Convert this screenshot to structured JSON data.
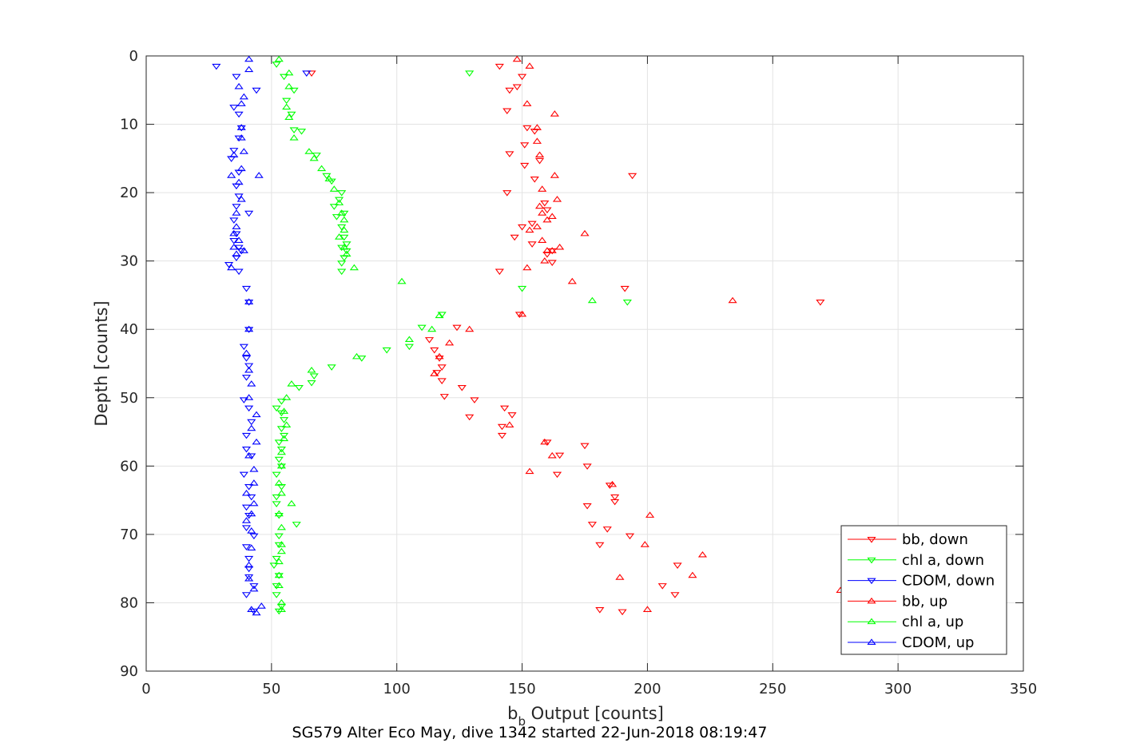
{
  "chart_data": {
    "type": "scatter",
    "xlabel": {
      "main": "b",
      "sub": "b",
      "rest": " Output [counts]"
    },
    "ylabel": "Depth [counts]",
    "caption": "SG579 Alter Eco May, dive 1342 started 22-Jun-2018 08:19:47",
    "xlim": [
      0,
      350
    ],
    "ylim": [
      0,
      90
    ],
    "y_reversed": true,
    "grid": true,
    "x_ticks": [
      "0",
      "50",
      "100",
      "150",
      "200",
      "250",
      "300",
      "350"
    ],
    "y_ticks": [
      "0",
      "10",
      "20",
      "30",
      "40",
      "50",
      "60",
      "70",
      "80",
      "90"
    ],
    "legend_position": "bottom-right",
    "series": [
      {
        "name": "bb, down",
        "color": "#ff0000",
        "marker": "triangle-down",
        "points": [
          [
            66,
            2.5
          ],
          [
            141,
            1.5
          ],
          [
            150,
            3
          ],
          [
            148,
            4.5
          ],
          [
            145,
            5
          ],
          [
            144,
            8
          ],
          [
            152,
            10.5
          ],
          [
            155,
            11
          ],
          [
            151,
            13
          ],
          [
            145,
            14.3
          ],
          [
            157,
            15.3
          ],
          [
            151,
            16
          ],
          [
            155,
            18
          ],
          [
            144,
            20
          ],
          [
            159,
            21.5
          ],
          [
            160,
            22.5
          ],
          [
            154,
            24.5
          ],
          [
            150,
            25
          ],
          [
            147,
            26.5
          ],
          [
            154,
            27.5
          ],
          [
            162,
            28.5
          ],
          [
            160,
            29
          ],
          [
            162,
            30.2
          ],
          [
            141,
            31.5
          ],
          [
            191,
            34
          ],
          [
            269,
            36
          ],
          [
            194,
            17.5
          ],
          [
            149,
            37.8
          ],
          [
            124,
            39.7
          ],
          [
            113,
            41.5
          ],
          [
            115,
            43
          ],
          [
            117,
            44.2
          ],
          [
            118,
            45.5
          ],
          [
            116,
            46.3
          ],
          [
            118,
            47.5
          ],
          [
            126,
            48.5
          ],
          [
            119,
            49.8
          ],
          [
            131,
            50.3
          ],
          [
            143,
            51.5
          ],
          [
            146,
            52.5
          ],
          [
            129,
            52.8
          ],
          [
            142,
            54.2
          ],
          [
            142,
            55.5
          ],
          [
            160,
            56.5
          ],
          [
            165,
            58.4
          ],
          [
            175,
            57
          ],
          [
            176,
            60
          ],
          [
            164,
            61.2
          ],
          [
            185,
            62.8
          ],
          [
            187,
            64.5
          ],
          [
            187,
            65.2
          ],
          [
            176,
            65.8
          ],
          [
            184,
            69.2
          ],
          [
            178,
            68.5
          ],
          [
            193,
            70.2
          ],
          [
            181,
            71.5
          ],
          [
            212,
            74.5
          ],
          [
            206,
            77.5
          ],
          [
            211,
            78.8
          ],
          [
            181,
            81
          ],
          [
            190,
            81.3
          ]
        ]
      },
      {
        "name": "chl a, down",
        "color": "#00ff00",
        "marker": "triangle-down",
        "points": [
          [
            52,
            1.2
          ],
          [
            55,
            3
          ],
          [
            59,
            5
          ],
          [
            56,
            6.5
          ],
          [
            58,
            8.5
          ],
          [
            62,
            11
          ],
          [
            59,
            10.8
          ],
          [
            68,
            14.5
          ],
          [
            72,
            17.5
          ],
          [
            74,
            18.3
          ],
          [
            78,
            20
          ],
          [
            77,
            21
          ],
          [
            75,
            22
          ],
          [
            79,
            23
          ],
          [
            76,
            23.5
          ],
          [
            78,
            25
          ],
          [
            79,
            26.5
          ],
          [
            80,
            27.5
          ],
          [
            78,
            28
          ],
          [
            80,
            28.5
          ],
          [
            79,
            29.5
          ],
          [
            78,
            30.3
          ],
          [
            78,
            31.5
          ],
          [
            129,
            2.5
          ],
          [
            150,
            34
          ],
          [
            192,
            36
          ],
          [
            118,
            37.8
          ],
          [
            110,
            39.7
          ],
          [
            105,
            42.5
          ],
          [
            96,
            43
          ],
          [
            86,
            44.2
          ],
          [
            74,
            45.5
          ],
          [
            67,
            46.8
          ],
          [
            66,
            47.8
          ],
          [
            61,
            48.5
          ],
          [
            54,
            50.5
          ],
          [
            52,
            51.5
          ],
          [
            54,
            52.2
          ],
          [
            55,
            53.2
          ],
          [
            54,
            54.5
          ],
          [
            55,
            55.5
          ],
          [
            53,
            56.5
          ],
          [
            54,
            57.5
          ],
          [
            53,
            59
          ],
          [
            54,
            60
          ],
          [
            52,
            61.2
          ],
          [
            54,
            63
          ],
          [
            52,
            64.5
          ],
          [
            52,
            65.5
          ],
          [
            53,
            67.2
          ],
          [
            60,
            68.5
          ],
          [
            53,
            70.2
          ],
          [
            53,
            71.5
          ],
          [
            52,
            73.5
          ],
          [
            51,
            74.5
          ],
          [
            53,
            76
          ],
          [
            52,
            77.5
          ],
          [
            52,
            78.8
          ],
          [
            54,
            80.5
          ],
          [
            53,
            81.2
          ]
        ]
      },
      {
        "name": "CDOM, down",
        "color": "#0000ff",
        "marker": "triangle-down",
        "points": [
          [
            28,
            1.5
          ],
          [
            64,
            2.5
          ],
          [
            36,
            3
          ],
          [
            44,
            5
          ],
          [
            35,
            7.5
          ],
          [
            37,
            8.5
          ],
          [
            38,
            10.5
          ],
          [
            37,
            12
          ],
          [
            35,
            13.8
          ],
          [
            34,
            15
          ],
          [
            37,
            17
          ],
          [
            36,
            19
          ],
          [
            37,
            20.5
          ],
          [
            36,
            22
          ],
          [
            41,
            23
          ],
          [
            35,
            24
          ],
          [
            36,
            26
          ],
          [
            35,
            27
          ],
          [
            37,
            28
          ],
          [
            38,
            28.5
          ],
          [
            36,
            29.5
          ],
          [
            33,
            30.5
          ],
          [
            37,
            31.5
          ],
          [
            40,
            34
          ],
          [
            41,
            36
          ],
          [
            41,
            40
          ],
          [
            39,
            42.5
          ],
          [
            40,
            44.2
          ],
          [
            41,
            45.3
          ],
          [
            40,
            47
          ],
          [
            39,
            50.3
          ],
          [
            41,
            51.5
          ],
          [
            42,
            53.5
          ],
          [
            40,
            55.5
          ],
          [
            40,
            57.5
          ],
          [
            42,
            58.5
          ],
          [
            39,
            61.2
          ],
          [
            41,
            63
          ],
          [
            42,
            64.5
          ],
          [
            40,
            66
          ],
          [
            41,
            67.2
          ],
          [
            40,
            69
          ],
          [
            43,
            70.2
          ],
          [
            40,
            71.8
          ],
          [
            41,
            73.5
          ],
          [
            41,
            75
          ],
          [
            41,
            76.2
          ],
          [
            43,
            77.5
          ],
          [
            40,
            78.8
          ],
          [
            43,
            81.2
          ]
        ]
      },
      {
        "name": "bb, up",
        "color": "#ff0000",
        "marker": "triangle-up",
        "points": [
          [
            148,
            0.5
          ],
          [
            153,
            1.5
          ],
          [
            152,
            7
          ],
          [
            163,
            8.5
          ],
          [
            156,
            10.5
          ],
          [
            156,
            12.5
          ],
          [
            157,
            14.5
          ],
          [
            163,
            17.5
          ],
          [
            158,
            19.5
          ],
          [
            164,
            21
          ],
          [
            157,
            22
          ],
          [
            158,
            23
          ],
          [
            162,
            23.5
          ],
          [
            160,
            24
          ],
          [
            156,
            25
          ],
          [
            153,
            25.5
          ],
          [
            175,
            26
          ],
          [
            158,
            27
          ],
          [
            165,
            28
          ],
          [
            162,
            28.5
          ],
          [
            160,
            28.5
          ],
          [
            159,
            30
          ],
          [
            152,
            31
          ],
          [
            170,
            33
          ],
          [
            234,
            35.8
          ],
          [
            150,
            37.8
          ],
          [
            129,
            40
          ],
          [
            121,
            42
          ],
          [
            117,
            44
          ],
          [
            115,
            46.5
          ],
          [
            145,
            54
          ],
          [
            277,
            78.2
          ],
          [
            222,
            73
          ],
          [
            218,
            76
          ],
          [
            189,
            76.3
          ],
          [
            199,
            71.5
          ],
          [
            200,
            81
          ],
          [
            201,
            67.2
          ],
          [
            186,
            62.7
          ],
          [
            153,
            60.8
          ],
          [
            162,
            58.5
          ],
          [
            159,
            56.5
          ]
        ]
      },
      {
        "name": "chl a, up",
        "color": "#00ff00",
        "marker": "triangle-up",
        "points": [
          [
            53,
            0.5
          ],
          [
            57,
            2.5
          ],
          [
            57,
            4.5
          ],
          [
            56,
            7.5
          ],
          [
            57,
            9
          ],
          [
            59,
            12
          ],
          [
            65,
            14
          ],
          [
            67,
            15
          ],
          [
            70,
            16.5
          ],
          [
            73,
            18
          ],
          [
            75,
            19.5
          ],
          [
            77,
            21.5
          ],
          [
            78,
            23
          ],
          [
            79,
            24
          ],
          [
            79,
            25.5
          ],
          [
            77,
            26.5
          ],
          [
            79,
            28
          ],
          [
            80,
            29
          ],
          [
            83,
            31
          ],
          [
            102,
            33
          ],
          [
            178,
            35.8
          ],
          [
            117,
            38
          ],
          [
            114,
            40
          ],
          [
            105,
            41.5
          ],
          [
            84,
            44
          ],
          [
            66,
            46
          ],
          [
            58,
            48
          ],
          [
            56,
            50
          ],
          [
            55,
            52
          ],
          [
            56,
            54
          ],
          [
            55,
            56
          ],
          [
            54,
            58
          ],
          [
            54,
            60
          ],
          [
            53,
            62.5
          ],
          [
            54,
            64
          ],
          [
            58,
            65.5
          ],
          [
            53,
            67
          ],
          [
            54,
            69
          ],
          [
            54,
            71.5
          ],
          [
            54,
            72.5
          ],
          [
            53,
            74
          ],
          [
            53,
            76
          ],
          [
            53,
            77.5
          ],
          [
            54,
            80
          ],
          [
            54,
            81
          ]
        ]
      },
      {
        "name": "CDOM, up",
        "color": "#0000ff",
        "marker": "triangle-up",
        "points": [
          [
            41,
            0.5
          ],
          [
            41,
            2
          ],
          [
            37,
            4.5
          ],
          [
            39,
            6
          ],
          [
            38,
            7
          ],
          [
            38,
            10.5
          ],
          [
            38,
            12
          ],
          [
            39,
            14
          ],
          [
            35,
            14.5
          ],
          [
            38,
            16.5
          ],
          [
            34,
            17.5
          ],
          [
            45,
            17.5
          ],
          [
            37,
            18.5
          ],
          [
            38,
            21
          ],
          [
            36,
            23
          ],
          [
            36,
            25
          ],
          [
            35,
            26
          ],
          [
            37,
            27
          ],
          [
            35,
            28
          ],
          [
            39,
            28.5
          ],
          [
            36,
            29
          ],
          [
            34,
            31
          ],
          [
            41,
            36
          ],
          [
            41,
            40
          ],
          [
            40,
            43.5
          ],
          [
            41,
            46
          ],
          [
            42,
            48
          ],
          [
            41,
            50
          ],
          [
            44,
            52.5
          ],
          [
            42,
            54.5
          ],
          [
            44,
            56.5
          ],
          [
            41,
            58.5
          ],
          [
            43,
            60.5
          ],
          [
            43,
            62.5
          ],
          [
            40,
            64
          ],
          [
            43,
            65.5
          ],
          [
            42,
            67
          ],
          [
            40,
            68
          ],
          [
            42,
            69.5
          ],
          [
            42,
            72
          ],
          [
            41,
            74.5
          ],
          [
            41,
            76.5
          ],
          [
            43,
            78
          ],
          [
            46,
            80.5
          ],
          [
            42,
            81
          ],
          [
            44,
            81.5
          ]
        ]
      }
    ]
  }
}
